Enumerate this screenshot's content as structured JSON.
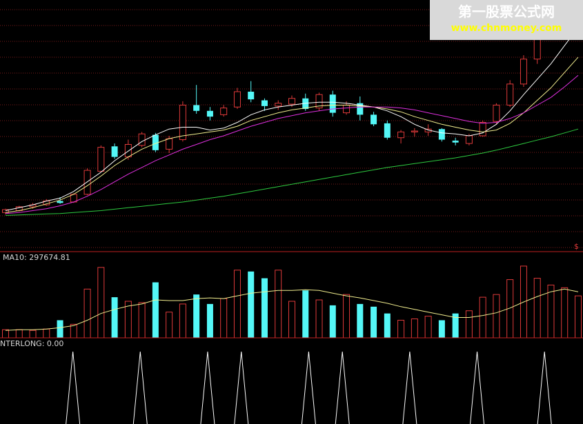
{
  "volume_panel": {
    "label": "MA10: 297674.81"
  },
  "signal_panel": {
    "label": "NTERLONG: 0.00"
  },
  "price_panel": {
    "corner_mark": "$"
  },
  "watermark": {
    "line1": "第一股票公式网",
    "line2": "www.chnmoney.com"
  },
  "colors": {
    "up": "#e03a3a",
    "down": "#54f7f7",
    "ma5": "#ffffff",
    "ma10": "#f3ef8f",
    "ma20": "#e030e0",
    "ma60": "#2ecc40",
    "grid": "#7a1a1a",
    "divider": "#c02020",
    "signal": "#ffffff"
  },
  "chart_data": [
    {
      "type": "candlestick",
      "series": [
        {
          "name": "MA5",
          "values": [
            10.2,
            10.5,
            10.8,
            11.2,
            11.5,
            12.2,
            13.2,
            14.2,
            15.4,
            16.4,
            17.4,
            18.1,
            18.7,
            18.9,
            18.9,
            18.6,
            18.8,
            19.4,
            20.2,
            20.7,
            21.0,
            21.2,
            21.4,
            21.5,
            21.5,
            21.4,
            21.2,
            21.0,
            20.6,
            20.0,
            19.2,
            18.6,
            18.3,
            18.2,
            18.0,
            18.3,
            19.2,
            20.6,
            22.3,
            23.9,
            25.5,
            27.4,
            29.3
          ]
        },
        {
          "name": "MA10",
          "values": [
            10.0,
            10.2,
            10.5,
            10.9,
            11.3,
            11.9,
            12.8,
            13.8,
            14.9,
            15.8,
            16.6,
            17.2,
            17.7,
            18.0,
            18.2,
            18.4,
            18.6,
            19.0,
            19.6,
            20.0,
            20.4,
            20.7,
            20.9,
            21.1,
            21.2,
            21.2,
            21.1,
            21.0,
            20.8,
            20.5,
            20.0,
            19.6,
            19.2,
            18.9,
            18.6,
            18.4,
            18.6,
            19.3,
            20.4,
            21.7,
            23.0,
            24.6,
            26.2
          ]
        },
        {
          "name": "MA20",
          "values": [
            9.9,
            10.0,
            10.2,
            10.4,
            10.7,
            11.1,
            11.7,
            12.4,
            13.2,
            14.0,
            14.7,
            15.4,
            16.0,
            16.6,
            17.1,
            17.6,
            18.0,
            18.5,
            19.0,
            19.4,
            19.8,
            20.1,
            20.4,
            20.6,
            20.8,
            20.9,
            21.0,
            21.0,
            21.0,
            20.9,
            20.7,
            20.4,
            20.1,
            19.8,
            19.5,
            19.3,
            19.4,
            19.8,
            20.4,
            21.2,
            22.0,
            23.1,
            24.3
          ]
        },
        {
          "name": "MA60",
          "values": [
            9.7,
            9.75,
            9.8,
            9.85,
            9.9,
            10.0,
            10.1,
            10.2,
            10.35,
            10.5,
            10.65,
            10.8,
            10.95,
            11.1,
            11.3,
            11.5,
            11.7,
            11.95,
            12.2,
            12.45,
            12.7,
            12.95,
            13.2,
            13.45,
            13.7,
            13.95,
            14.2,
            14.45,
            14.7,
            14.9,
            15.1,
            15.3,
            15.5,
            15.7,
            15.95,
            16.2,
            16.5,
            16.85,
            17.2,
            17.55,
            17.9,
            18.3,
            18.7
          ]
        }
      ],
      "ohlc": [
        [
          10.0,
          10.4,
          9.8,
          10.3
        ],
        [
          10.2,
          10.7,
          10.1,
          10.6
        ],
        [
          10.6,
          11.0,
          10.4,
          10.8
        ],
        [
          10.8,
          11.4,
          10.7,
          11.2
        ],
        [
          11.2,
          11.6,
          10.9,
          11.0
        ],
        [
          11.1,
          12.0,
          11.0,
          11.9
        ],
        [
          11.9,
          14.6,
          11.8,
          14.4
        ],
        [
          14.3,
          17.0,
          14.2,
          16.8
        ],
        [
          16.9,
          17.2,
          15.6,
          15.8
        ],
        [
          15.8,
          17.6,
          15.5,
          17.1
        ],
        [
          17.0,
          18.4,
          16.8,
          18.2
        ],
        [
          18.1,
          18.3,
          16.3,
          16.5
        ],
        [
          16.6,
          18.0,
          16.2,
          17.7
        ],
        [
          17.6,
          21.6,
          17.4,
          21.2
        ],
        [
          21.2,
          23.3,
          20.3,
          20.6
        ],
        [
          20.6,
          21.0,
          19.6,
          20.0
        ],
        [
          20.2,
          21.2,
          20.0,
          20.9
        ],
        [
          21.0,
          23.0,
          20.8,
          22.6
        ],
        [
          22.6,
          23.7,
          21.5,
          21.8
        ],
        [
          21.7,
          21.9,
          20.6,
          21.1
        ],
        [
          21.1,
          21.7,
          20.7,
          21.4
        ],
        [
          21.3,
          22.2,
          21.0,
          21.9
        ],
        [
          21.9,
          22.4,
          20.6,
          20.8
        ],
        [
          20.9,
          22.5,
          20.6,
          22.3
        ],
        [
          22.3,
          22.7,
          20.0,
          20.4
        ],
        [
          20.4,
          21.6,
          20.2,
          21.2
        ],
        [
          21.4,
          22.1,
          19.6,
          20.2
        ],
        [
          20.2,
          20.5,
          19.0,
          19.2
        ],
        [
          19.3,
          19.6,
          17.6,
          17.8
        ],
        [
          17.8,
          18.6,
          17.2,
          18.4
        ],
        [
          18.4,
          18.8,
          17.9,
          18.5
        ],
        [
          18.4,
          19.2,
          18.0,
          18.7
        ],
        [
          18.7,
          18.8,
          17.4,
          17.6
        ],
        [
          17.5,
          17.8,
          17.0,
          17.3
        ],
        [
          17.2,
          18.2,
          17.0,
          18.0
        ],
        [
          18.0,
          19.6,
          17.9,
          19.4
        ],
        [
          19.5,
          21.4,
          19.2,
          21.2
        ],
        [
          21.2,
          23.8,
          21.0,
          23.4
        ],
        [
          23.4,
          26.4,
          23.1,
          26.0
        ],
        [
          26.0,
          29.4,
          25.5,
          29.0
        ],
        [
          29.0,
          30.6,
          28.3,
          30.2
        ],
        [
          30.2,
          31.5,
          29.5,
          31.2
        ],
        [
          31.2,
          32.4,
          30.0,
          32.0
        ]
      ],
      "ylim": [
        9.3,
        31.8
      ]
    },
    {
      "type": "bar",
      "series": [
        {
          "name": "volume",
          "values": [
            12,
            12,
            11,
            13,
            26,
            20,
            72,
            104,
            60,
            54,
            52,
            82,
            38,
            50,
            64,
            50,
            58,
            100,
            98,
            88,
            100,
            54,
            70,
            56,
            48,
            64,
            50,
            46,
            36,
            26,
            28,
            32,
            26,
            36,
            40,
            60,
            64,
            86,
            106,
            88,
            78,
            74,
            62
          ]
        },
        {
          "name": "MA10",
          "values": [
            11,
            12,
            12,
            13,
            15,
            18,
            26,
            36,
            42,
            47,
            50,
            56,
            55,
            55,
            58,
            59,
            58,
            62,
            66,
            68,
            70,
            70,
            71,
            70,
            66,
            62,
            59,
            55,
            51,
            46,
            42,
            38,
            34,
            30,
            30,
            33,
            37,
            44,
            53,
            61,
            68,
            72,
            68
          ]
        }
      ],
      "ylim": [
        0,
        110
      ]
    },
    {
      "type": "line",
      "series": [
        {
          "name": "NTERLONG",
          "values": [
            0,
            0,
            1,
            0,
            1,
            0,
            1,
            1,
            0,
            1,
            1,
            0,
            1,
            0,
            1,
            0,
            1,
            0
          ]
        }
      ]
    }
  ]
}
